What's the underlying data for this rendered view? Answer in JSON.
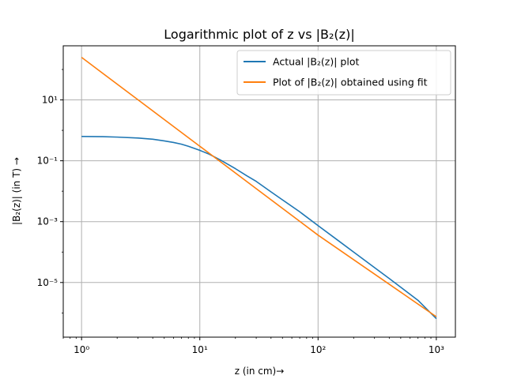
{
  "chart_data": {
    "type": "line",
    "title": "Logarithmic plot of z vs |B₂(z)|",
    "xlabel": "z (in cm)→",
    "ylabel": "|B₂(z)| (in T) →",
    "xscale": "log",
    "yscale": "log",
    "xlim": [
      0.7,
      1450
    ],
    "ylim": [
      1.6e-07,
      600
    ],
    "x_ticks": [
      1,
      10,
      100,
      1000
    ],
    "x_tick_labels": [
      "10⁰",
      "10¹",
      "10²",
      "10³"
    ],
    "y_ticks": [
      1e-05,
      0.001,
      0.1,
      10
    ],
    "y_tick_labels": [
      "10⁻⁵",
      "10⁻³",
      "10⁻¹",
      "10¹"
    ],
    "grid": true,
    "legend_position": "top-right",
    "series": [
      {
        "name": "Actual |B₂(z)| plot",
        "color": "#1f77b4",
        "x": [
          1,
          1.5,
          2,
          3,
          4,
          5,
          6,
          7,
          8,
          10,
          12,
          15,
          20,
          25,
          30,
          40,
          50,
          70,
          100,
          150,
          200,
          300,
          400,
          500,
          700,
          1000
        ],
        "y": [
          0.63,
          0.62,
          0.6,
          0.56,
          0.51,
          0.45,
          0.4,
          0.35,
          0.3,
          0.22,
          0.165,
          0.105,
          0.055,
          0.032,
          0.021,
          0.0095,
          0.0052,
          0.0021,
          0.00074,
          0.00023,
          0.0001,
          3.1e-05,
          1.35e-05,
          7e-06,
          2.6e-06,
          6.5e-07
        ]
      },
      {
        "name": "Plot of |B₂(z)| obtained using fit",
        "color": "#ff7f0e",
        "x": [
          1,
          10,
          100,
          1000
        ],
        "y": [
          250,
          0.3,
          0.00036,
          7.5e-07
        ]
      }
    ]
  }
}
